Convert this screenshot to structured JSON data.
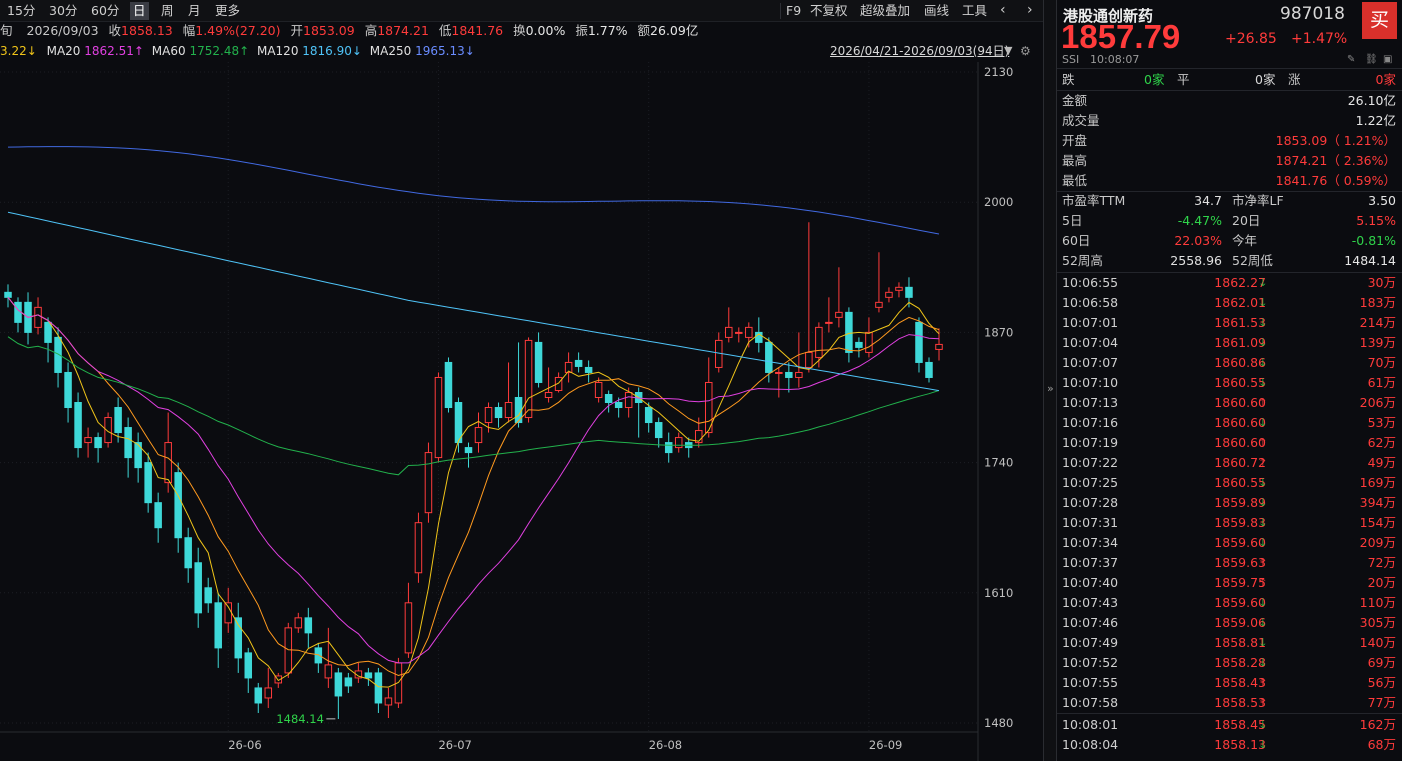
{
  "toolbar": {
    "periods": [
      "15分",
      "30分",
      "60分",
      "日",
      "周",
      "月",
      "更多"
    ],
    "active_period": "日",
    "tools": [
      "F9",
      "不复权",
      "超级叠加",
      "画线",
      "工具"
    ]
  },
  "ohlc_row": {
    "prefix": "旬",
    "date": "2026/09/03",
    "close_label": "收",
    "close": "1858.13",
    "amp_label": "幅",
    "amp": "1.49%(27.20)",
    "open_label": "开",
    "open": "1853.09",
    "high_label": "高",
    "high": "1874.21",
    "low_label": "低",
    "low": "1841.76",
    "turnover_label": "换",
    "turnover": "0.00%",
    "swing_label": "振",
    "swing": "1.77%",
    "amount_label": "额",
    "amount": "26.09亿"
  },
  "ma_row": {
    "ma5": "3.22↓",
    "ma20_label": "MA20",
    "ma20": "1862.51↑",
    "ma60_label": "MA60",
    "ma60": "1752.48↑",
    "ma120_label": "MA120",
    "ma120": "1816.90↓",
    "ma250_label": "MA250",
    "ma250": "1965.13↓",
    "range": "2026/04/21-2026/09/03(94日)"
  },
  "chart_data": {
    "type": "candlestick",
    "ylim": [
      1480,
      2130
    ],
    "yticks": [
      "2130",
      "2000",
      "1870",
      "1740",
      "1610",
      "1480"
    ],
    "xticks": [
      "26-06",
      "26-07",
      "26-08",
      "26-09"
    ],
    "min_label": "1484.14",
    "colors": {
      "up": "#ff3b3b",
      "down": "#3ed8d8",
      "ma5": "#f0c419",
      "ma10": "#ff9a1f",
      "ma20": "#e040e0",
      "ma60": "#22b14c",
      "ma120": "#4fc3f7",
      "ma250": "#4169e1"
    },
    "candles": [
      [
        1910,
        1905,
        1918,
        1895
      ],
      [
        1900,
        1880,
        1905,
        1870
      ],
      [
        1900,
        1870,
        1910,
        1858
      ],
      [
        1875,
        1895,
        1905,
        1868
      ],
      [
        1880,
        1860,
        1885,
        1840
      ],
      [
        1865,
        1830,
        1875,
        1815
      ],
      [
        1830,
        1795,
        1840,
        1780
      ],
      [
        1800,
        1755,
        1810,
        1745
      ],
      [
        1760,
        1765,
        1775,
        1745
      ],
      [
        1765,
        1755,
        1770,
        1740
      ],
      [
        1760,
        1785,
        1790,
        1755
      ],
      [
        1795,
        1770,
        1805,
        1760
      ],
      [
        1775,
        1745,
        1785,
        1725
      ],
      [
        1760,
        1735,
        1770,
        1720
      ],
      [
        1740,
        1700,
        1750,
        1690
      ],
      [
        1700,
        1675,
        1710,
        1660
      ],
      [
        1720,
        1760,
        1790,
        1710
      ],
      [
        1730,
        1665,
        1740,
        1650
      ],
      [
        1665,
        1635,
        1675,
        1620
      ],
      [
        1640,
        1590,
        1655,
        1575
      ],
      [
        1615,
        1600,
        1625,
        1590
      ],
      [
        1600,
        1555,
        1610,
        1535
      ],
      [
        1580,
        1600,
        1615,
        1570
      ],
      [
        1585,
        1545,
        1600,
        1530
      ],
      [
        1550,
        1525,
        1555,
        1510
      ],
      [
        1515,
        1500,
        1520,
        1490
      ],
      [
        1505,
        1515,
        1535,
        1495
      ],
      [
        1520,
        1527,
        1530,
        1515
      ],
      [
        1530,
        1575,
        1580,
        1525
      ],
      [
        1575,
        1585,
        1590,
        1570
      ],
      [
        1585,
        1570,
        1595,
        1555
      ],
      [
        1555,
        1540,
        1560,
        1530
      ],
      [
        1525,
        1538,
        1575,
        1515
      ],
      [
        1530,
        1507,
        1535,
        1484
      ],
      [
        1525,
        1517,
        1530,
        1510
      ],
      [
        1525,
        1532,
        1540,
        1520
      ],
      [
        1530,
        1525,
        1535,
        1517
      ],
      [
        1530,
        1500,
        1535,
        1490
      ],
      [
        1498,
        1505,
        1515,
        1485
      ],
      [
        1500,
        1540,
        1545,
        1495
      ],
      [
        1550,
        1600,
        1620,
        1545
      ],
      [
        1630,
        1680,
        1690,
        1620
      ],
      [
        1690,
        1750,
        1760,
        1680
      ],
      [
        1745,
        1825,
        1830,
        1740
      ],
      [
        1840,
        1795,
        1845,
        1790
      ],
      [
        1800,
        1760,
        1805,
        1750
      ],
      [
        1755,
        1750,
        1760,
        1735
      ],
      [
        1760,
        1775,
        1790,
        1750
      ],
      [
        1780,
        1795,
        1800,
        1770
      ],
      [
        1795,
        1785,
        1800,
        1775
      ],
      [
        1785,
        1800,
        1840,
        1780
      ],
      [
        1805,
        1780,
        1860,
        1775
      ],
      [
        1785,
        1862,
        1865,
        1780
      ],
      [
        1860,
        1820,
        1870,
        1815
      ],
      [
        1805,
        1810,
        1835,
        1800
      ],
      [
        1812,
        1825,
        1830,
        1810
      ],
      [
        1830,
        1840,
        1850,
        1820
      ],
      [
        1842,
        1836,
        1850,
        1830
      ],
      [
        1835,
        1830,
        1842,
        1820
      ],
      [
        1805,
        1820,
        1825,
        1800
      ],
      [
        1808,
        1800,
        1812,
        1790
      ],
      [
        1800,
        1795,
        1805,
        1785
      ],
      [
        1795,
        1810,
        1815,
        1785
      ],
      [
        1810,
        1800,
        1815,
        1765
      ],
      [
        1795,
        1780,
        1800,
        1770
      ],
      [
        1780,
        1765,
        1785,
        1755
      ],
      [
        1760,
        1750,
        1770,
        1740
      ],
      [
        1755,
        1765,
        1770,
        1750
      ],
      [
        1760,
        1755,
        1765,
        1745
      ],
      [
        1760,
        1772,
        1785,
        1755
      ],
      [
        1770,
        1820,
        1845,
        1765
      ],
      [
        1835,
        1862,
        1870,
        1830
      ],
      [
        1865,
        1875,
        1895,
        1860
      ],
      [
        1870,
        1870,
        1875,
        1860
      ],
      [
        1865,
        1875,
        1880,
        1855
      ],
      [
        1870,
        1860,
        1885,
        1850
      ],
      [
        1860,
        1830,
        1865,
        1820
      ],
      [
        1830,
        1830,
        1835,
        1805
      ],
      [
        1830,
        1825,
        1840,
        1810
      ],
      [
        1825,
        1830,
        1870,
        1815
      ],
      [
        1835,
        1850,
        1980,
        1830
      ],
      [
        1845,
        1875,
        1880,
        1835
      ],
      [
        1880,
        1880,
        1905,
        1870
      ],
      [
        1885,
        1890,
        1935,
        1875
      ],
      [
        1890,
        1850,
        1895,
        1840
      ],
      [
        1860,
        1855,
        1865,
        1845
      ],
      [
        1850,
        1870,
        1885,
        1845
      ],
      [
        1895,
        1900,
        1950,
        1890
      ],
      [
        1905,
        1910,
        1915,
        1900
      ],
      [
        1912,
        1915,
        1920,
        1905
      ],
      [
        1915,
        1905,
        1925,
        1895
      ],
      [
        1880,
        1840,
        1885,
        1830
      ],
      [
        1840,
        1825,
        1845,
        1820
      ],
      [
        1853,
        1858,
        1874,
        1842
      ]
    ]
  },
  "panel": {
    "name": "港股通创新药",
    "code": "987018",
    "price": "1857.79",
    "change": "+26.85",
    "change_pct": "+1.47%",
    "buy_label": "买",
    "market": "SSI",
    "time": "10:08:07",
    "breadth": {
      "down_label": "跌",
      "down": "0家",
      "flat_label": "平",
      "flat": "0家",
      "up_label": "涨",
      "up": "0家"
    },
    "stats": [
      {
        "label": "金额",
        "value": "26.10亿",
        "color": "white"
      },
      {
        "label": "成交量",
        "value": "1.22亿",
        "color": "white"
      },
      {
        "label": "开盘",
        "value": "1853.09（ 1.21%）",
        "color": "red"
      },
      {
        "label": "最高",
        "value": "1874.21（ 2.36%）",
        "color": "red"
      },
      {
        "label": "最低",
        "value": "1841.76（ 0.59%）",
        "color": "red"
      }
    ],
    "pe_label": "市盈率TTM",
    "pe": "34.7",
    "pb_label": "市净率LF",
    "pb": "3.50",
    "d5_label": "5日",
    "d5": "-4.47%",
    "d20_label": "20日",
    "d20": "5.15%",
    "d60_label": "60日",
    "d60": "22.03%",
    "ytd_label": "今年",
    "ytd": "-0.81%",
    "w52h_label": "52周高",
    "w52h": "2558.96",
    "w52l_label": "52周低",
    "w52l": "1484.14",
    "ticks": [
      {
        "time": "10:06:55",
        "price": "1862.27",
        "dir": "down",
        "vol": "30万"
      },
      {
        "time": "10:06:58",
        "price": "1862.01",
        "dir": "down",
        "vol": "183万"
      },
      {
        "time": "10:07:01",
        "price": "1861.53",
        "dir": "down",
        "vol": "214万"
      },
      {
        "time": "10:07:04",
        "price": "1861.09",
        "dir": "down",
        "vol": "139万"
      },
      {
        "time": "10:07:07",
        "price": "1860.86",
        "dir": "down",
        "vol": "70万"
      },
      {
        "time": "10:07:10",
        "price": "1860.55",
        "dir": "down",
        "vol": "61万"
      },
      {
        "time": "10:07:13",
        "price": "1860.60",
        "dir": "up",
        "vol": "206万"
      },
      {
        "time": "10:07:16",
        "price": "1860.60",
        "dir": "down",
        "vol": "53万"
      },
      {
        "time": "10:07:19",
        "price": "1860.60",
        "dir": "up",
        "vol": "62万"
      },
      {
        "time": "10:07:22",
        "price": "1860.72",
        "dir": "up",
        "vol": "49万"
      },
      {
        "time": "10:07:25",
        "price": "1860.55",
        "dir": "down",
        "vol": "169万"
      },
      {
        "time": "10:07:28",
        "price": "1859.89",
        "dir": "down",
        "vol": "394万"
      },
      {
        "time": "10:07:31",
        "price": "1859.83",
        "dir": "down",
        "vol": "154万"
      },
      {
        "time": "10:07:34",
        "price": "1859.60",
        "dir": "down",
        "vol": "209万"
      },
      {
        "time": "10:07:37",
        "price": "1859.63",
        "dir": "up",
        "vol": "72万"
      },
      {
        "time": "10:07:40",
        "price": "1859.75",
        "dir": "up",
        "vol": "20万"
      },
      {
        "time": "10:07:43",
        "price": "1859.60",
        "dir": "down",
        "vol": "110万"
      },
      {
        "time": "10:07:46",
        "price": "1859.06",
        "dir": "down",
        "vol": "305万"
      },
      {
        "time": "10:07:49",
        "price": "1858.81",
        "dir": "down",
        "vol": "140万"
      },
      {
        "time": "10:07:52",
        "price": "1858.28",
        "dir": "down",
        "vol": "69万"
      },
      {
        "time": "10:07:55",
        "price": "1858.43",
        "dir": "up",
        "vol": "56万"
      },
      {
        "time": "10:07:58",
        "price": "1858.53",
        "dir": "up",
        "vol": "77万"
      },
      {
        "time": "10:08:01",
        "price": "1858.45",
        "dir": "down",
        "vol": "162万"
      },
      {
        "time": "10:08:04",
        "price": "1858.13",
        "dir": "down",
        "vol": "68万"
      }
    ]
  }
}
